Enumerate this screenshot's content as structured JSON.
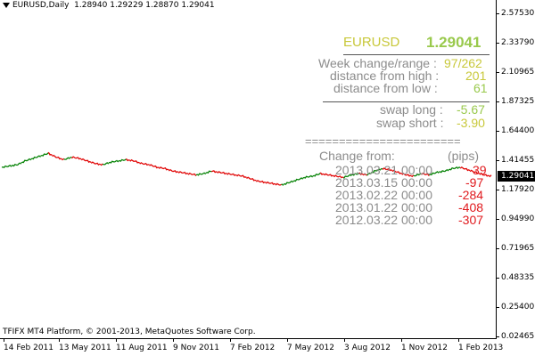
{
  "header": {
    "symbol": "EURUSD,Daily",
    "ohlc": "1.28940 1.29229 1.28870 1.29041"
  },
  "info_panel": {
    "pair_label": "EURUSD",
    "current_price": "1.29041",
    "week_change_label": "Week change/range :",
    "week_change_value": "97/262",
    "dist_high_label": "distance from high :",
    "dist_high_value": "201",
    "dist_low_label": "distance from low :",
    "dist_low_value": "61",
    "swap_long_label": "swap long :",
    "swap_long_value": "-5.67",
    "swap_short_label": "swap short :",
    "swap_short_value": "-3.90",
    "equals_line": "=======================",
    "change_from_label": "Change from:",
    "pips_label": "(pips)",
    "changes": [
      {
        "date": "2013.03.21 00:00",
        "value": "39"
      },
      {
        "date": "2013.03.15 00:00",
        "value": "-97"
      },
      {
        "date": "2013.02.22 00:00",
        "value": "-284"
      },
      {
        "date": "2013.01.22 00:00",
        "value": "-408"
      },
      {
        "date": "2012.03.22 00:00",
        "value": "-307"
      }
    ]
  },
  "price_badge": "1.29041",
  "y_axis": [
    "2.57530",
    "2.33790",
    "2.10965",
    "1.87325",
    "1.64400",
    "1.41455",
    "1.17920",
    "0.94990",
    "0.71965",
    "0.48335",
    "0.25400",
    "0.02465"
  ],
  "x_axis": [
    "14 Feb 2011",
    "13 May 2011",
    "11 Aug 2011",
    "9 Nov 2011",
    "7 Feb 2012",
    "7 May 2012",
    "3 Aug 2012",
    "1 Nov 2012",
    "1 Feb 2013"
  ],
  "footer": "TFIFX MT4 Platform, © 2001-2013, MetaQuotes Software Corp.",
  "colors": {
    "bull_candle": "#008000",
    "bear_candle": "#e00000",
    "label_gray": "#8c8c8c",
    "label_yellow": "#c8c83a",
    "label_green": "#99c94c",
    "label_red": "#e0191d"
  },
  "chart_data": {
    "type": "line",
    "y_ticks": [
      2.5753,
      2.3379,
      2.10965,
      1.87325,
      1.644,
      1.41455,
      1.1792,
      0.9499,
      0.71965,
      0.48335,
      0.254,
      0.02465
    ],
    "x_ticks": [
      "14 Feb 2011",
      "13 May 2011",
      "11 Aug 2011",
      "9 Nov 2011",
      "7 Feb 2012",
      "7 May 2012",
      "3 Aug 2012",
      "1 Nov 2012",
      "1 Feb 2013"
    ],
    "ylim": [
      0.02465,
      2.5753
    ],
    "series": [
      {
        "values": [
          1.36,
          1.37,
          1.38,
          1.41,
          1.43,
          1.45,
          1.47,
          1.44,
          1.42,
          1.44,
          1.43,
          1.41,
          1.39,
          1.38,
          1.4,
          1.41,
          1.42,
          1.41,
          1.39,
          1.38,
          1.36,
          1.35,
          1.33,
          1.32,
          1.31,
          1.3,
          1.31,
          1.33,
          1.32,
          1.31,
          1.3,
          1.29,
          1.27,
          1.25,
          1.24,
          1.23,
          1.22,
          1.24,
          1.26,
          1.28,
          1.29,
          1.31,
          1.3,
          1.29,
          1.28,
          1.3,
          1.31,
          1.3,
          1.33,
          1.35,
          1.34,
          1.32,
          1.3,
          1.29,
          1.31,
          1.3,
          1.32,
          1.33,
          1.35,
          1.36,
          1.34,
          1.32,
          1.3,
          1.29
        ]
      }
    ]
  }
}
